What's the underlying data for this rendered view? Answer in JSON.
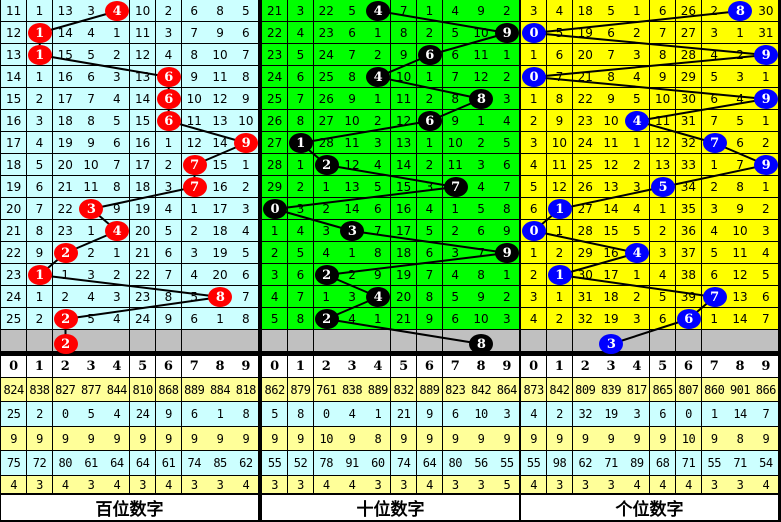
{
  "chart_data": {
    "type": "table",
    "sections": [
      {
        "name": "百位数字",
        "bg": "#ccffff",
        "ball_color": "#ff0000",
        "rows": [
          [
            11,
            1,
            13,
            3,
            4,
            10,
            2,
            6,
            8,
            5
          ],
          [
            12,
            1,
            14,
            4,
            1,
            11,
            3,
            7,
            9,
            6
          ],
          [
            13,
            1,
            15,
            5,
            2,
            12,
            4,
            8,
            10,
            7
          ],
          [
            14,
            1,
            16,
            6,
            3,
            13,
            6,
            9,
            11,
            8
          ],
          [
            15,
            2,
            17,
            7,
            4,
            14,
            6,
            10,
            12,
            9
          ],
          [
            16,
            3,
            18,
            8,
            5,
            15,
            6,
            11,
            13,
            10
          ],
          [
            17,
            4,
            19,
            9,
            6,
            16,
            1,
            12,
            14,
            9
          ],
          [
            18,
            5,
            20,
            10,
            7,
            17,
            2,
            7,
            15,
            1
          ],
          [
            19,
            6,
            21,
            11,
            8,
            18,
            3,
            7,
            16,
            2
          ],
          [
            20,
            7,
            22,
            3,
            9,
            19,
            4,
            1,
            17,
            3
          ],
          [
            21,
            8,
            23,
            1,
            4,
            20,
            5,
            2,
            18,
            4
          ],
          [
            22,
            9,
            2,
            2,
            1,
            21,
            6,
            3,
            19,
            5
          ],
          [
            23,
            1,
            1,
            3,
            2,
            22,
            7,
            4,
            20,
            6
          ],
          [
            24,
            1,
            2,
            4,
            3,
            23,
            8,
            5,
            8,
            7
          ],
          [
            25,
            2,
            2,
            5,
            4,
            24,
            9,
            6,
            1,
            8
          ]
        ],
        "picks": [
          4,
          1,
          1,
          6,
          6,
          6,
          9,
          7,
          7,
          3,
          4,
          2,
          1,
          8,
          2,
          2
        ],
        "digits": [
          "0",
          "1",
          "2",
          "3",
          "4",
          "5",
          "6",
          "7",
          "8",
          "9"
        ],
        "stats": [
          [
            "824",
            "838",
            "827",
            "877",
            "844",
            "810",
            "868",
            "889",
            "884",
            "818"
          ],
          [
            "25",
            "2",
            "0",
            "5",
            "4",
            "24",
            "9",
            "6",
            "1",
            "8"
          ],
          [
            "9",
            "9",
            "9",
            "9",
            "9",
            "9",
            "9",
            "9",
            "9",
            "9"
          ],
          [
            "75",
            "72",
            "80",
            "61",
            "64",
            "64",
            "61",
            "74",
            "85",
            "62"
          ],
          [
            "4",
            "3",
            "4",
            "3",
            "4",
            "3",
            "4",
            "3",
            "3",
            "4"
          ]
        ]
      },
      {
        "name": "十位数字",
        "bg": "#00ff00",
        "ball_color": "#000000",
        "rows": [
          [
            21,
            3,
            22,
            5,
            4,
            7,
            1,
            4,
            9,
            2
          ],
          [
            22,
            4,
            23,
            6,
            1,
            8,
            2,
            5,
            10,
            9
          ],
          [
            23,
            5,
            24,
            7,
            2,
            9,
            6,
            6,
            11,
            1
          ],
          [
            24,
            6,
            25,
            8,
            4,
            10,
            1,
            7,
            12,
            2
          ],
          [
            25,
            7,
            26,
            9,
            1,
            11,
            2,
            8,
            8,
            3
          ],
          [
            26,
            8,
            27,
            10,
            2,
            12,
            6,
            9,
            1,
            4
          ],
          [
            27,
            1,
            28,
            11,
            3,
            13,
            1,
            10,
            2,
            5
          ],
          [
            28,
            1,
            2,
            12,
            4,
            14,
            2,
            11,
            3,
            6
          ],
          [
            29,
            2,
            1,
            13,
            5,
            15,
            3,
            7,
            4,
            7
          ],
          [
            0,
            3,
            2,
            14,
            6,
            16,
            4,
            1,
            5,
            8
          ],
          [
            1,
            4,
            3,
            3,
            7,
            17,
            5,
            2,
            6,
            9
          ],
          [
            2,
            5,
            4,
            1,
            8,
            18,
            6,
            3,
            7,
            9
          ],
          [
            3,
            6,
            2,
            2,
            9,
            19,
            7,
            4,
            8,
            1
          ],
          [
            4,
            7,
            1,
            3,
            4,
            20,
            8,
            5,
            9,
            2
          ],
          [
            5,
            8,
            2,
            4,
            1,
            21,
            9,
            6,
            10,
            3
          ]
        ],
        "picks": [
          4,
          9,
          6,
          4,
          8,
          6,
          1,
          2,
          7,
          0,
          3,
          9,
          2,
          4,
          2,
          8
        ],
        "digits": [
          "0",
          "1",
          "2",
          "3",
          "4",
          "5",
          "6",
          "7",
          "8",
          "9"
        ],
        "stats": [
          [
            "862",
            "879",
            "761",
            "838",
            "889",
            "832",
            "889",
            "823",
            "842",
            "864"
          ],
          [
            "5",
            "8",
            "0",
            "4",
            "1",
            "21",
            "9",
            "6",
            "10",
            "3"
          ],
          [
            "9",
            "9",
            "10",
            "9",
            "8",
            "9",
            "9",
            "9",
            "9",
            "9"
          ],
          [
            "55",
            "52",
            "78",
            "91",
            "60",
            "74",
            "64",
            "80",
            "56",
            "55"
          ],
          [
            "3",
            "3",
            "4",
            "4",
            "3",
            "3",
            "4",
            "3",
            "3",
            "5"
          ]
        ]
      },
      {
        "name": "个位数字",
        "bg": "#ffff00",
        "ball_color": "#0000ff",
        "rows": [
          [
            3,
            4,
            18,
            5,
            1,
            6,
            26,
            2,
            8,
            30
          ],
          [
            0,
            5,
            19,
            6,
            2,
            7,
            27,
            3,
            1,
            31
          ],
          [
            1,
            6,
            20,
            7,
            3,
            8,
            28,
            4,
            2,
            9
          ],
          [
            0,
            7,
            21,
            8,
            4,
            9,
            29,
            5,
            3,
            1
          ],
          [
            1,
            8,
            22,
            9,
            5,
            10,
            30,
            6,
            4,
            9
          ],
          [
            2,
            9,
            23,
            10,
            4,
            11,
            31,
            7,
            5,
            1
          ],
          [
            3,
            10,
            24,
            11,
            1,
            12,
            32,
            7,
            6,
            2
          ],
          [
            4,
            11,
            25,
            12,
            2,
            13,
            33,
            1,
            7,
            9
          ],
          [
            5,
            12,
            26,
            13,
            3,
            5,
            34,
            2,
            8,
            1
          ],
          [
            6,
            1,
            27,
            14,
            4,
            1,
            35,
            3,
            9,
            2
          ],
          [
            0,
            1,
            28,
            15,
            5,
            2,
            36,
            4,
            10,
            3
          ],
          [
            1,
            2,
            29,
            16,
            4,
            3,
            37,
            5,
            11,
            4
          ],
          [
            2,
            1,
            30,
            17,
            1,
            4,
            38,
            6,
            12,
            5
          ],
          [
            3,
            1,
            31,
            18,
            2,
            5,
            39,
            7,
            13,
            6
          ],
          [
            4,
            2,
            32,
            19,
            3,
            6,
            6,
            1,
            14,
            7
          ]
        ],
        "picks": [
          8,
          0,
          9,
          0,
          9,
          4,
          7,
          9,
          5,
          1,
          0,
          4,
          1,
          7,
          6,
          3
        ],
        "digits": [
          "0",
          "1",
          "2",
          "3",
          "4",
          "5",
          "6",
          "7",
          "8",
          "9"
        ],
        "stats": [
          [
            "873",
            "842",
            "809",
            "839",
            "817",
            "865",
            "807",
            "860",
            "901",
            "866"
          ],
          [
            "4",
            "2",
            "32",
            "19",
            "3",
            "6",
            "0",
            "1",
            "14",
            "7"
          ],
          [
            "9",
            "9",
            "9",
            "9",
            "9",
            "9",
            "10",
            "9",
            "8",
            "9"
          ],
          [
            "55",
            "98",
            "62",
            "71",
            "89",
            "68",
            "71",
            "55",
            "71",
            "54"
          ],
          [
            "4",
            "3",
            "3",
            "3",
            "4",
            "4",
            "4",
            "3",
            "3",
            "4"
          ]
        ]
      }
    ],
    "colors": {
      "pending_row": "#c0c0c0",
      "header": "#ffffff",
      "stat_yellow": "#ffff99",
      "stat_cyan": "#ccffff"
    }
  }
}
